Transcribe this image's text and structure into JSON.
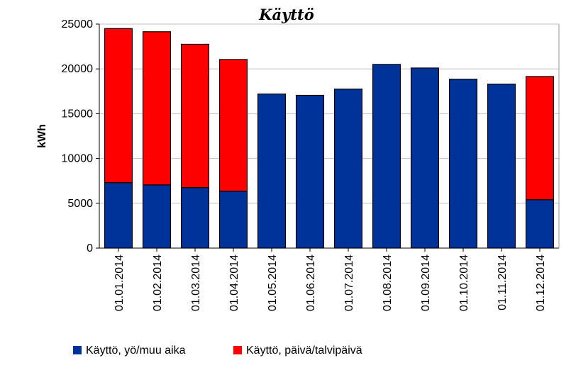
{
  "chart_data": {
    "type": "bar",
    "stacked": true,
    "title": "Käyttö",
    "xlabel": "",
    "ylabel": "kWh",
    "ylim": [
      0,
      25000
    ],
    "yticks": [
      "0",
      "5000",
      "10000",
      "15000",
      "20000",
      "25000"
    ],
    "grid": true,
    "legend": "bottom",
    "categories": [
      "01.01.2014",
      "01.02.2014",
      "01.03.2014",
      "01.04.2014",
      "01.05.2014",
      "01.06.2014",
      "01.07.2014",
      "01.08.2014",
      "01.09.2014",
      "01.10.2014",
      "01.11.2014",
      "01.12.2014"
    ],
    "series": [
      {
        "name": "Käyttö, yö/muu aika",
        "color": "#003399",
        "values": [
          7300,
          7050,
          6750,
          6350,
          17200,
          17050,
          17750,
          20500,
          20100,
          18850,
          18300,
          5400
        ]
      },
      {
        "name": "Käyttö, päivä/talvipäivä",
        "color": "#ff0000",
        "values": [
          17200,
          17100,
          16000,
          14700,
          0,
          0,
          0,
          0,
          0,
          0,
          0,
          13750
        ]
      }
    ]
  }
}
